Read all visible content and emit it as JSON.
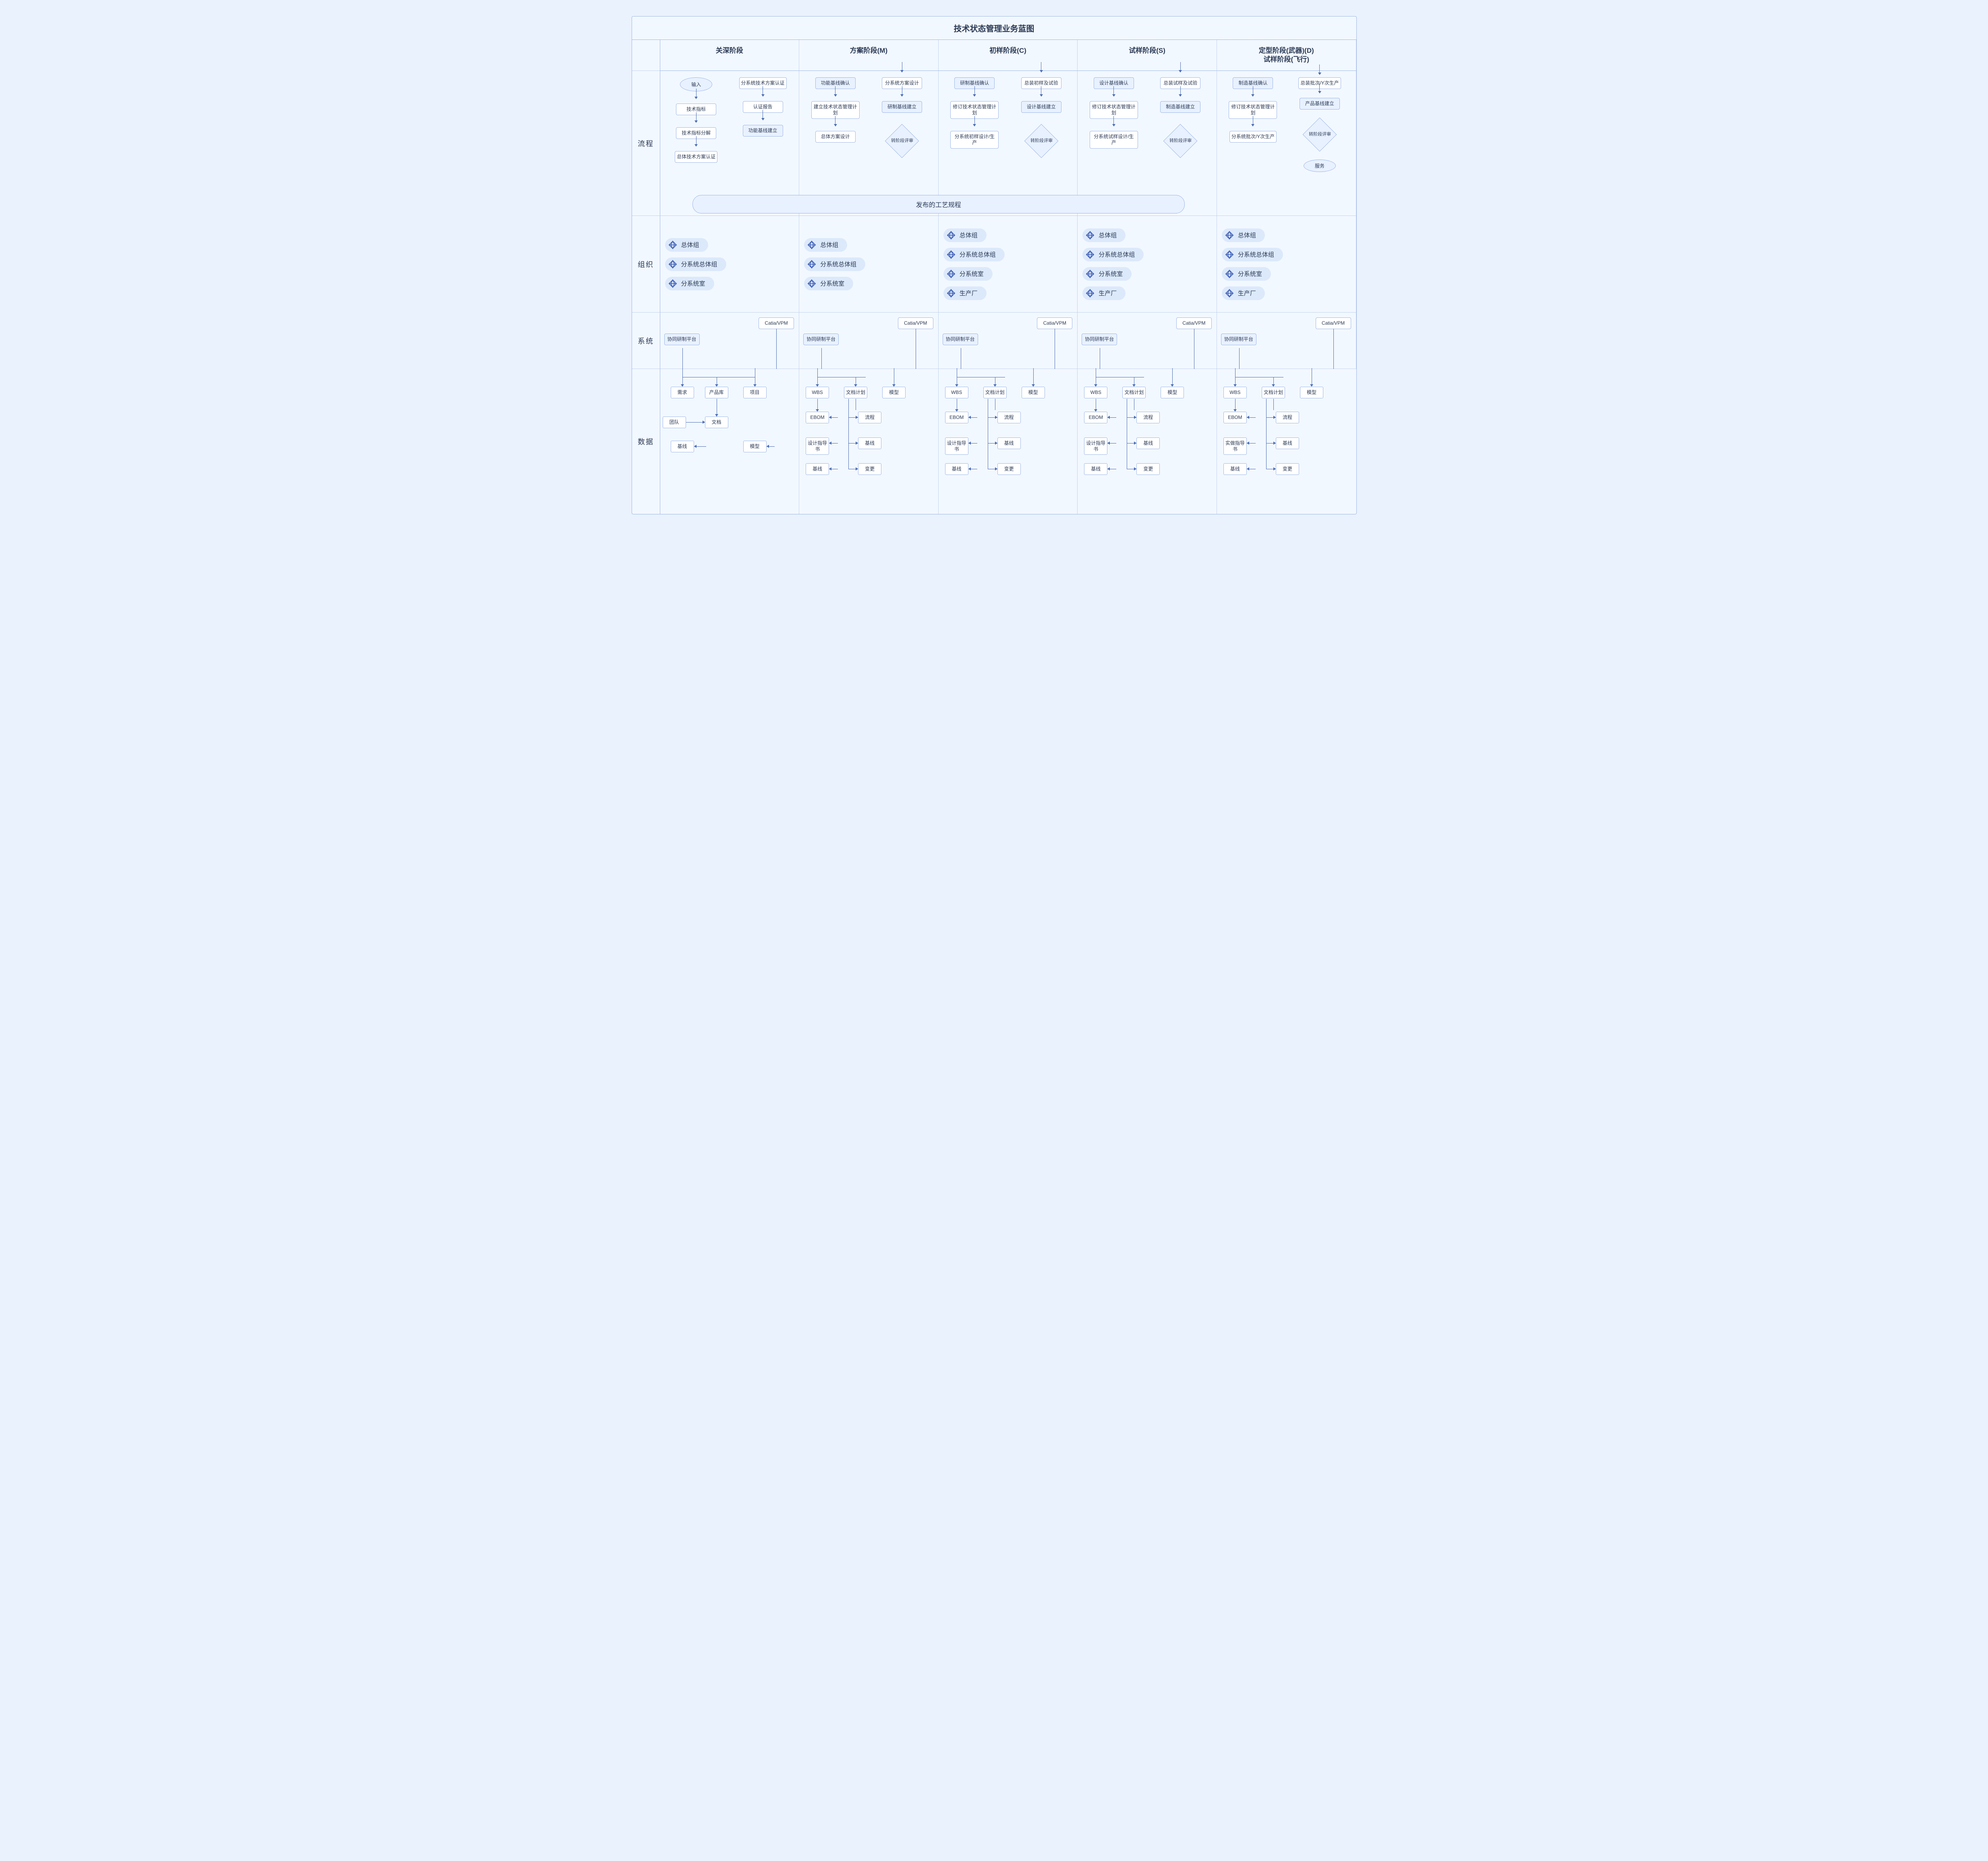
{
  "title": "技术状态管理业务蓝图",
  "row_labels": {
    "process": "流程",
    "org": "组织",
    "system": "系统",
    "data": "数据"
  },
  "phases": [
    {
      "name": "关深阶段",
      "code": ""
    },
    {
      "name": "方案阶段(M)",
      "code": "M"
    },
    {
      "name": "初样阶段(C)",
      "code": "C"
    },
    {
      "name": "试样阶段(S)",
      "code": "S"
    },
    {
      "name": "定型阶段(武器)(D)\n试样阶段(飞行)",
      "code": "D"
    }
  ],
  "process": {
    "banner": "发布的工艺规程",
    "p0": {
      "col1": [
        {
          "t": "输入",
          "shape": "ellipse"
        },
        {
          "t": "技术指标"
        },
        {
          "t": "技术指标分解"
        },
        {
          "t": "总体技术方案认证"
        }
      ],
      "col2": [
        {
          "t": "分系统技术方案认证"
        },
        {
          "t": "认证报告"
        },
        {
          "t": "功能基线建立",
          "fill": true
        }
      ]
    },
    "p1": {
      "col1": [
        {
          "t": "功能基线确认",
          "fill": true
        },
        {
          "t": "建立技术状态管理计划"
        },
        {
          "t": "总体方案设计"
        }
      ],
      "col2": [
        {
          "t": "分系统方案设计"
        },
        {
          "t": "研制基线建立",
          "fill": true
        },
        {
          "t": "转阶段评审",
          "shape": "diamond"
        }
      ]
    },
    "p2": {
      "col1": [
        {
          "t": "研制基线确认",
          "fill": true
        },
        {
          "t": "修订技术状态管理计划"
        },
        {
          "t": "分系统初样设计/生产"
        }
      ],
      "col2": [
        {
          "t": "总装初样及试验"
        },
        {
          "t": "设计基线建立",
          "fill": true
        },
        {
          "t": "转阶段评审",
          "shape": "diamond"
        }
      ]
    },
    "p3": {
      "col1": [
        {
          "t": "设计基线确认",
          "fill": true
        },
        {
          "t": "修订技术状态管理计划"
        },
        {
          "t": "分系统试样设计/生产"
        }
      ],
      "col2": [
        {
          "t": "总装试样及试验"
        },
        {
          "t": "制造基线建立",
          "fill": true
        },
        {
          "t": "转阶段评审",
          "shape": "diamond"
        }
      ]
    },
    "p4": {
      "col1": [
        {
          "t": "制造基线确认",
          "fill": true
        },
        {
          "t": "修订技术状态管理计划"
        },
        {
          "t": "分系统批次/Y次生产"
        }
      ],
      "col2": [
        {
          "t": "总装批次/Y次生产"
        },
        {
          "t": "产品基线建立",
          "fill": true
        },
        {
          "t": "转阶段评审",
          "shape": "diamond"
        },
        {
          "t": "服务",
          "shape": "ellipse"
        }
      ]
    }
  },
  "org": {
    "p0": [
      "总体组",
      "分系统总体组",
      "分系统室"
    ],
    "p1": [
      "总体组",
      "分系统总体组",
      "分系统室"
    ],
    "p2": [
      "总体组",
      "分系统总体组",
      "分系统室",
      "生产厂"
    ],
    "p3": [
      "总体组",
      "分系统总体组",
      "分系统室",
      "生产厂"
    ],
    "p4": [
      "总体组",
      "分系统总体组",
      "分系统室",
      "生产厂"
    ]
  },
  "system": {
    "platform": "协同研制平台",
    "catia": "Catia/VPM"
  },
  "data": {
    "p0": {
      "row1": [
        "需求",
        "产品库",
        "项目"
      ],
      "row2_left": "团队",
      "row2_mid": "文档",
      "row3_left": "基线",
      "row3_right": "模型"
    },
    "std": {
      "row1": [
        "WBS",
        "文档计划",
        "模型"
      ],
      "left_col": [
        "EBOM",
        "设计指导书",
        "基线"
      ],
      "right_col": [
        "流程",
        "基线",
        "变更"
      ]
    },
    "p4_left_col": [
      "EBOM",
      "实做指导书",
      "基线"
    ]
  },
  "colors": {
    "bg": "#eaf2fd",
    "panel": "#f2f8ff",
    "border": "#9db7e6",
    "node_fill": "#e8f1ff",
    "pill_fill": "#dce9fb",
    "accent": "#4a6cb3"
  }
}
